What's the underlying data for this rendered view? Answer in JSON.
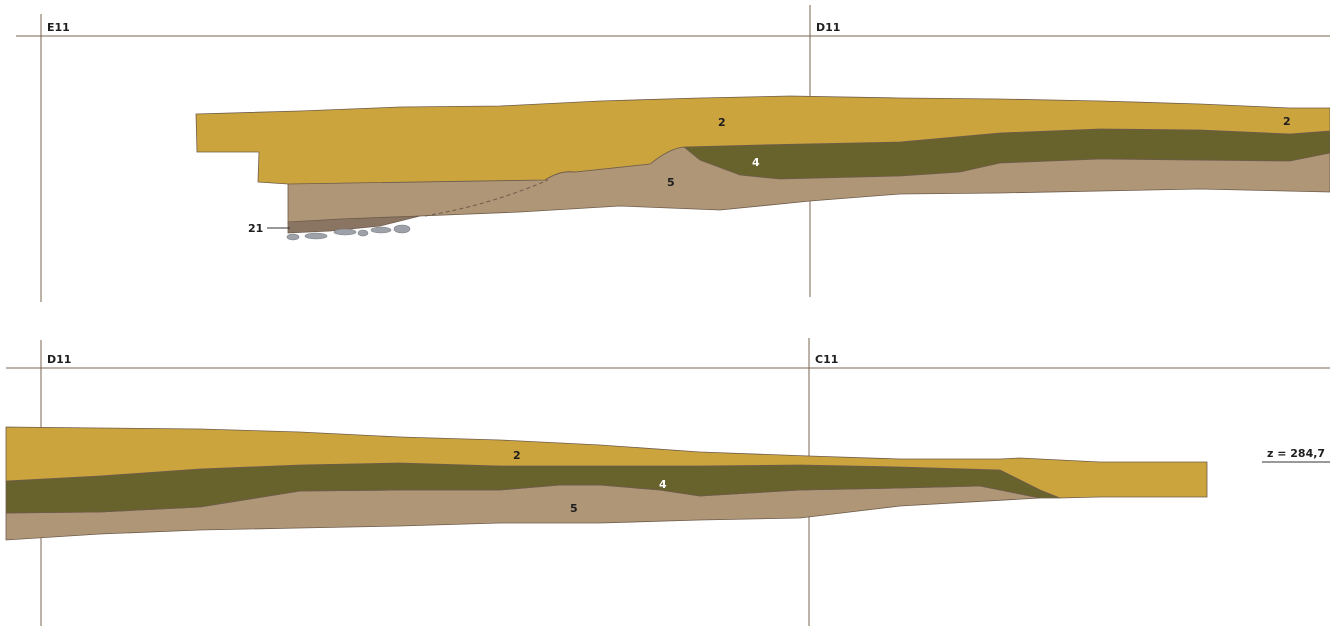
{
  "grid_labels": {
    "top_left": "E11",
    "top_right": "D11",
    "bottom_left": "D11",
    "bottom_right": "C11"
  },
  "layers": {
    "l2": "2",
    "l4": "4",
    "l5": "5",
    "l21": "21"
  },
  "elevation": "z = 284,7",
  "colors": {
    "layer_2": "#cca43e",
    "layer_4": "#68622c",
    "layer_5": "#ae9677",
    "layer_21": "#8a7462",
    "stones": "#9ea2a8",
    "grid_lines": "#7a6450"
  }
}
